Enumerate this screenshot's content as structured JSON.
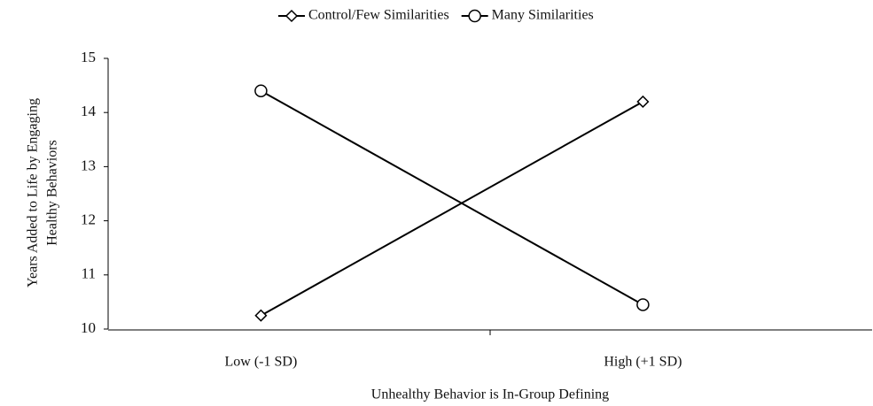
{
  "chart_data": {
    "type": "line",
    "categories": [
      "Low (-1 SD)",
      "High (+1 SD)"
    ],
    "series": [
      {
        "name": "Control/Few Similarities",
        "color": "#000000",
        "marker": "diamond",
        "values": [
          10.25,
          14.2
        ]
      },
      {
        "name": "Many Similarities",
        "color": "#000000",
        "marker": "circle",
        "values": [
          14.4,
          10.45
        ]
      }
    ],
    "xlabel": "Unhealthy Behavior is In-Group Defining",
    "ylabel": [
      "Years Added to Life by Engaging",
      "Healthy Behaviors"
    ],
    "ylim": [
      10,
      15
    ],
    "yticks": [
      10,
      11,
      12,
      13,
      14,
      15
    ],
    "legend": "top"
  }
}
